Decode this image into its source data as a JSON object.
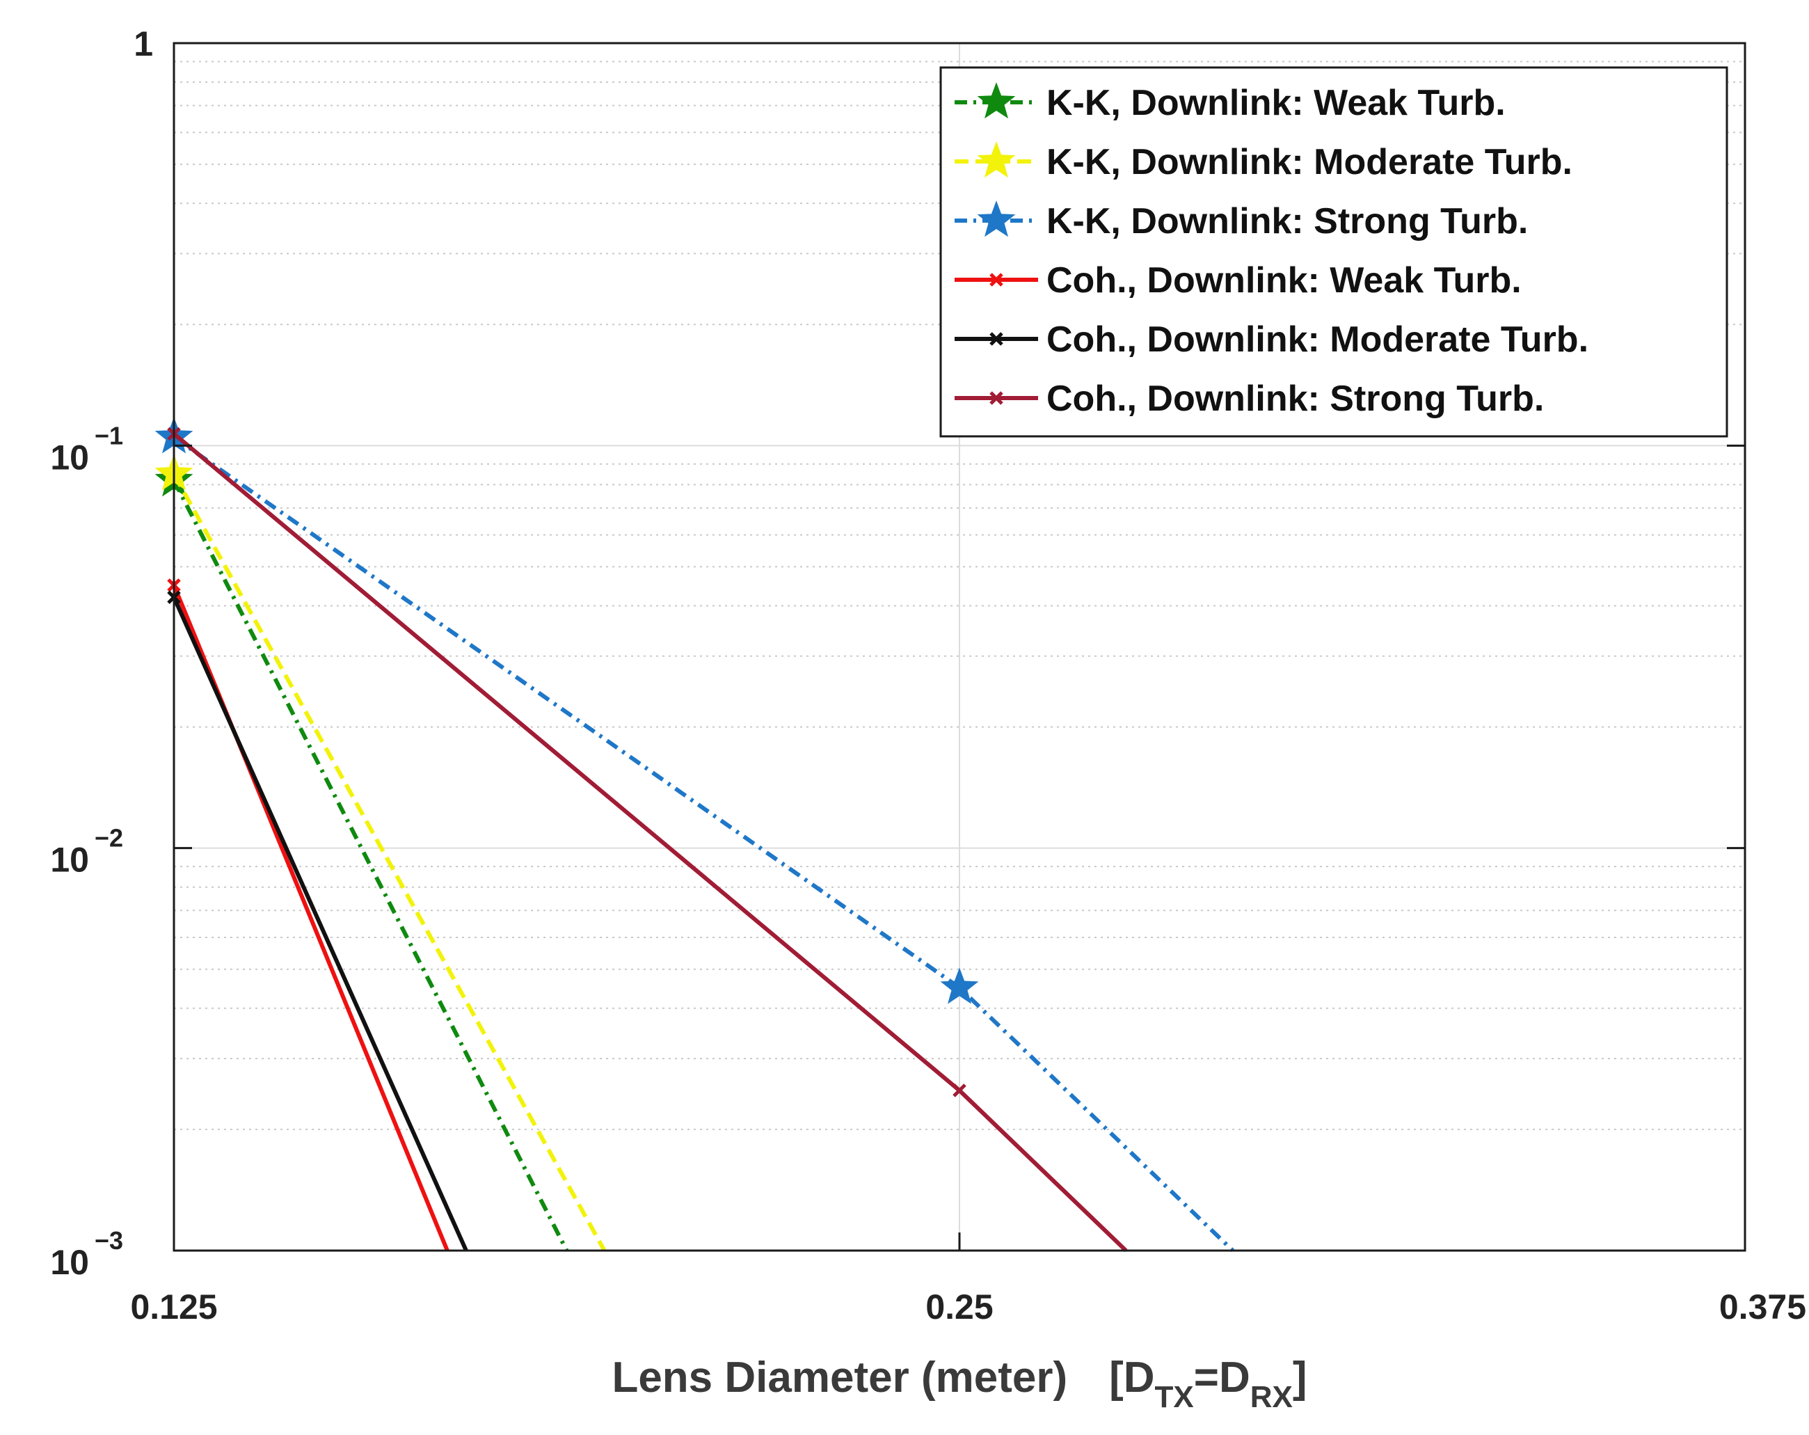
{
  "chart_data": {
    "type": "line",
    "title": "",
    "xlabel": "Lens Diameter (meter)",
    "xlabel_note": {
      "open": "[D",
      "sub1": "TX",
      "eq": "=D",
      "sub2": "RX",
      "close": "]"
    },
    "ylabel": "",
    "yscale": "log",
    "xlim": [
      0.125,
      0.375
    ],
    "ylim": [
      0.001,
      1
    ],
    "x_ticks": [
      {
        "value": 0.125,
        "label": "0.125"
      },
      {
        "value": 0.25,
        "label": "0.25"
      },
      {
        "value": 0.375,
        "label": "0.375"
      }
    ],
    "y_ticks": [
      {
        "value": 1,
        "base": "1",
        "exp": ""
      },
      {
        "value": 0.1,
        "base": "10",
        "exp": "−1"
      },
      {
        "value": 0.01,
        "base": "10",
        "exp": "−2"
      },
      {
        "value": 0.001,
        "base": "10",
        "exp": "−3"
      }
    ],
    "grid": true,
    "legend_position": "top-right",
    "series": [
      {
        "name": "K-K, Downlink: Weak Turb.",
        "color": "#0f8a0f",
        "style": "dashdot",
        "marker": "star",
        "x": [
          0.125,
          0.1875
        ],
        "y": [
          0.082,
          0.001
        ]
      },
      {
        "name": "K-K, Downlink: Moderate Turb.",
        "color": "#f2f20a",
        "style": "dashed",
        "marker": "star",
        "x": [
          0.125,
          0.1935
        ],
        "y": [
          0.085,
          0.001
        ]
      },
      {
        "name": "K-K, Downlink: Strong Turb.",
        "color": "#1f77c8",
        "style": "dashdot",
        "marker": "star",
        "x": [
          0.125,
          0.25,
          0.2935
        ],
        "y": [
          0.105,
          0.0045,
          0.001
        ]
      },
      {
        "name": "Coh., Downlink: Weak Turb.",
        "color": "#ee1111",
        "style": "solid",
        "marker": "x",
        "x": [
          0.125,
          0.1685
        ],
        "y": [
          0.045,
          0.001
        ]
      },
      {
        "name": "Coh., Downlink: Moderate Turb.",
        "color": "#111111",
        "style": "solid",
        "marker": "x",
        "x": [
          0.125,
          0.1715
        ],
        "y": [
          0.042,
          0.001
        ]
      },
      {
        "name": "Coh., Downlink: Strong Turb.",
        "color": "#a11c35",
        "style": "solid",
        "marker": "x",
        "x": [
          0.125,
          0.25,
          0.2765
        ],
        "y": [
          0.107,
          0.0025,
          0.001
        ]
      }
    ]
  }
}
